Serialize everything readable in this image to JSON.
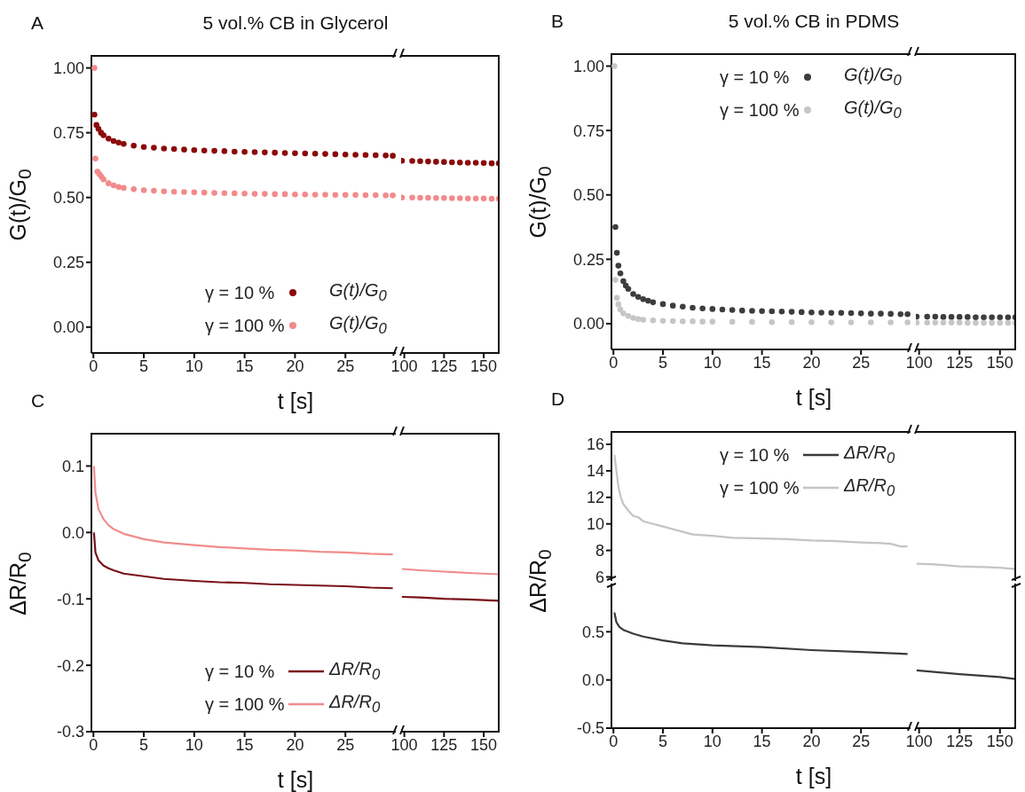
{
  "chart_data": [
    {
      "type": "scatter",
      "title": "5 vol.% CB in Glycerol",
      "xlabel": "t [s]",
      "ylabel": "G(t)/G$_{0}$",
      "annotations": [
        "A"
      ],
      "marker": "circle",
      "legend": "bottom right",
      "xlim": [
        -0.2,
        30
      ],
      "xticks": [
        0,
        5,
        10,
        15,
        20,
        25
      ],
      "ylim": [
        -0.1,
        1.05
      ],
      "yticks": [
        {
          "value": 0,
          "label": "0.00"
        },
        {
          "value": 0.25,
          "label": "0.25"
        },
        {
          "value": 0.5,
          "label": "0.50"
        },
        {
          "value": 0.75,
          "label": "0.75"
        },
        {
          "value": 1,
          "label": "1.00"
        }
      ],
      "series": [
        {
          "name": "γ = 10 %",
          "color": "#8b0a0a",
          "x": [
            0.1,
            0.3,
            0.5,
            0.75,
            1,
            1.5,
            2,
            2.5,
            3,
            4,
            5,
            6,
            7,
            8,
            9,
            10,
            11,
            12,
            13,
            14,
            15,
            16,
            17,
            18,
            19,
            20,
            21,
            22,
            23,
            24,
            25,
            26,
            27,
            28,
            29,
            29.7
          ],
          "values": [
            0.82,
            0.78,
            0.765,
            0.75,
            0.74,
            0.727,
            0.718,
            0.712,
            0.707,
            0.7,
            0.695,
            0.692,
            0.689,
            0.687,
            0.685,
            0.683,
            0.681,
            0.68,
            0.679,
            0.677,
            0.676,
            0.675,
            0.674,
            0.673,
            0.672,
            0.671,
            0.67,
            0.669,
            0.668,
            0.667,
            0.666,
            0.665,
            0.664,
            0.663,
            0.662,
            0.661
          ]
        },
        {
          "name": "γ = 100 %",
          "color": "#f28b8b",
          "x": [
            0.1,
            0.2,
            0.4,
            0.6,
            0.8,
            1,
            1.5,
            2,
            2.5,
            3,
            4,
            5,
            6,
            7,
            8,
            9,
            10,
            11,
            12,
            13,
            14,
            15,
            16,
            17,
            18,
            19,
            20,
            21,
            22,
            23,
            24,
            25,
            26,
            27,
            28,
            29,
            29.7
          ],
          "values": [
            1.0,
            0.65,
            0.6,
            0.59,
            0.58,
            0.57,
            0.555,
            0.547,
            0.541,
            0.537,
            0.532,
            0.528,
            0.526,
            0.524,
            0.522,
            0.521,
            0.52,
            0.519,
            0.518,
            0.517,
            0.516,
            0.515,
            0.514,
            0.514,
            0.513,
            0.513,
            0.512,
            0.512,
            0.511,
            0.511,
            0.51,
            0.51,
            0.51,
            0.509,
            0.509,
            0.508,
            0.508
          ]
        }
      ]
    },
    {
      "type": "scatter",
      "marker": "circle",
      "tick_labels": "x",
      "xlim": [
        98,
        160
      ],
      "xticks": [
        100,
        125,
        150
      ],
      "ylim": [
        -0.1,
        1.05
      ],
      "series": [
        {
          "color": "#8b0a0a",
          "x": [
            98.5,
            105,
            110,
            115,
            120,
            125,
            130,
            135,
            140,
            145,
            150,
            155,
            159.5
          ],
          "values": [
            0.642,
            0.641,
            0.64,
            0.639,
            0.638,
            0.637,
            0.636,
            0.635,
            0.634,
            0.634,
            0.633,
            0.632,
            0.632
          ]
        },
        {
          "color": "#f28b8b",
          "x": [
            98.5,
            105,
            110,
            115,
            120,
            125,
            130,
            135,
            140,
            145,
            150,
            155,
            159.5
          ],
          "values": [
            0.5,
            0.5,
            0.499,
            0.499,
            0.498,
            0.498,
            0.497,
            0.497,
            0.496,
            0.496,
            0.496,
            0.495,
            0.495
          ]
        }
      ]
    },
    {
      "type": "scatter",
      "title": "5 vol.% CB in PDMS",
      "xlabel": "t [s]",
      "ylabel": "G(t)/G$_{0}$",
      "annotations": [
        "B"
      ],
      "marker": "circle",
      "legend": "top right",
      "xlim": [
        -0.2,
        30
      ],
      "xticks": [
        0,
        5,
        10,
        15,
        20,
        25
      ],
      "ylim": [
        -0.1,
        1.05
      ],
      "yticks": [
        {
          "value": 0,
          "label": "0.00"
        },
        {
          "value": 0.25,
          "label": "0.25"
        },
        {
          "value": 0.5,
          "label": "0.50"
        },
        {
          "value": 0.75,
          "label": "0.75"
        },
        {
          "value": 1,
          "label": "1.00"
        }
      ],
      "series": [
        {
          "name": "γ = 10 %",
          "color": "#3d3d3d",
          "x": [
            0.2,
            0.35,
            0.5,
            0.7,
            1,
            1.25,
            1.5,
            2,
            2.5,
            3,
            3.5,
            4,
            5,
            6,
            7,
            8,
            9,
            10,
            11,
            12,
            13,
            14,
            15,
            16,
            17,
            18,
            19,
            20,
            21,
            22,
            23,
            24,
            25,
            26,
            27,
            28,
            29,
            29.7
          ],
          "values": [
            0.375,
            0.275,
            0.225,
            0.195,
            0.165,
            0.148,
            0.135,
            0.115,
            0.104,
            0.095,
            0.089,
            0.083,
            0.076,
            0.07,
            0.066,
            0.062,
            0.059,
            0.057,
            0.055,
            0.053,
            0.051,
            0.05,
            0.049,
            0.048,
            0.047,
            0.046,
            0.045,
            0.044,
            0.043,
            0.042,
            0.042,
            0.041,
            0.04,
            0.039,
            0.039,
            0.038,
            0.037,
            0.037
          ]
        },
        {
          "name": "γ = 100 %",
          "color": "#c6c6c6",
          "x": [
            0.1,
            0.2,
            0.35,
            0.5,
            0.7,
            1,
            1.5,
            2,
            2.5,
            3,
            4,
            5,
            6,
            7,
            8,
            9,
            10,
            12,
            14,
            16,
            18,
            20,
            22,
            24,
            26,
            28,
            29.7
          ],
          "values": [
            1.0,
            0.17,
            0.1,
            0.075,
            0.055,
            0.04,
            0.03,
            0.022,
            0.018,
            0.015,
            0.013,
            0.011,
            0.01,
            0.009,
            0.009,
            0.008,
            0.008,
            0.007,
            0.007,
            0.006,
            0.006,
            0.006,
            0.005,
            0.005,
            0.005,
            0.005,
            0.005
          ]
        }
      ]
    },
    {
      "type": "scatter",
      "marker": "circle",
      "tick_labels": "x",
      "xlim": [
        98,
        160
      ],
      "xticks": [
        100,
        125,
        150
      ],
      "ylim": [
        -0.1,
        1.05
      ],
      "series": [
        {
          "color": "#3d3d3d",
          "x": [
            98.5,
            105,
            110,
            115,
            120,
            125,
            130,
            135,
            140,
            145,
            150,
            155,
            159.5
          ],
          "values": [
            0.027,
            0.027,
            0.027,
            0.026,
            0.026,
            0.026,
            0.026,
            0.025,
            0.025,
            0.025,
            0.025,
            0.025,
            0.025
          ]
        },
        {
          "color": "#c6c6c6",
          "x": [
            98.5,
            105,
            110,
            115,
            120,
            125,
            130,
            135,
            140,
            145,
            150,
            155,
            159.5
          ],
          "values": [
            0.004,
            0.004,
            0.004,
            0.004,
            0.004,
            0.004,
            0.003,
            0.003,
            0.003,
            0.003,
            0.003,
            0.003,
            0.003
          ]
        }
      ]
    },
    {
      "type": "line",
      "xlabel": "t [s]",
      "ylabel": "ΔR/R$_{0}$",
      "annotations": [
        "C"
      ],
      "legend": "bottom right",
      "xlim": [
        -0.2,
        30
      ],
      "xticks": [
        0,
        5,
        10,
        15,
        20,
        25
      ],
      "ylim": [
        -0.3,
        0.15
      ],
      "yticks": [
        -0.3,
        -0.2,
        -0.1,
        {
          "value": 0,
          "label": "0.0"
        },
        0.1
      ],
      "series": [
        {
          "name": "γ = 10 %",
          "color": "#7a1018",
          "x": [
            0.05,
            0.2,
            0.5,
            1,
            1.5,
            2,
            3,
            4,
            5,
            7,
            10,
            12.5,
            15,
            17.5,
            20,
            22.5,
            25,
            27.5,
            29.7
          ],
          "values": [
            0.0,
            -0.03,
            -0.042,
            -0.05,
            -0.054,
            -0.057,
            -0.062,
            -0.064,
            -0.066,
            -0.07,
            -0.073,
            -0.075,
            -0.076,
            -0.078,
            -0.079,
            -0.08,
            -0.081,
            -0.083,
            -0.084
          ]
        },
        {
          "name": "γ = 100 %",
          "color": "#f08c8c",
          "x": [
            0.05,
            0.2,
            0.5,
            1,
            1.5,
            2,
            3,
            4,
            5,
            7,
            10,
            12.5,
            15,
            17.5,
            20,
            22.5,
            25,
            27.5,
            29.7
          ],
          "values": [
            0.1,
            0.06,
            0.035,
            0.02,
            0.011,
            0.005,
            -0.002,
            -0.006,
            -0.01,
            -0.015,
            -0.019,
            -0.022,
            -0.024,
            -0.026,
            -0.027,
            -0.029,
            -0.03,
            -0.032,
            -0.033
          ]
        }
      ]
    },
    {
      "type": "line",
      "tick_labels": "x",
      "xlim": [
        98,
        160
      ],
      "xticks": [
        100,
        125,
        150
      ],
      "ylim": [
        -0.3,
        0.15
      ],
      "series": [
        {
          "color": "#7a1018",
          "x": [
            98.5,
            110,
            125,
            140,
            150,
            159.5
          ],
          "values": [
            -0.097,
            -0.098,
            -0.1,
            -0.101,
            -0.102,
            -0.103
          ]
        },
        {
          "color": "#f08c8c",
          "x": [
            98.5,
            110,
            125,
            140,
            150,
            159.5
          ],
          "values": [
            -0.055,
            -0.057,
            -0.059,
            -0.061,
            -0.062,
            -0.063
          ]
        }
      ]
    },
    {
      "type": "line",
      "annotations": [
        "D"
      ],
      "legend": "top right",
      "tick_labels": "y",
      "xlim": [
        -0.2,
        30
      ],
      "ylim": [
        5.7,
        17
      ],
      "yticks": [
        6,
        8,
        10,
        12,
        14,
        16
      ],
      "series": [
        {
          "name": "γ = 100 %",
          "color": "#c4c4c4",
          "x": [
            0.1,
            0.3,
            0.5,
            0.75,
            1,
            1.5,
            2,
            2.5,
            3,
            4,
            5,
            6,
            7,
            8,
            10,
            12,
            15,
            17.5,
            20,
            22.5,
            25,
            27,
            28,
            29,
            29.7
          ],
          "values": [
            15.2,
            14.0,
            12.8,
            12.0,
            11.5,
            11.0,
            10.6,
            10.5,
            10.2,
            10.0,
            9.8,
            9.6,
            9.4,
            9.2,
            9.1,
            8.95,
            8.9,
            8.85,
            8.75,
            8.7,
            8.6,
            8.55,
            8.5,
            8.3,
            8.3
          ]
        }
      ]
    },
    {
      "type": "line",
      "tick_labels": false,
      "xlim": [
        98,
        160
      ],
      "ylim": [
        5.7,
        17
      ],
      "series": [
        {
          "color": "#c4c4c4",
          "x": [
            98.5,
            110,
            125,
            140,
            150,
            159.5
          ],
          "values": [
            7.0,
            6.95,
            6.8,
            6.75,
            6.7,
            6.6
          ]
        }
      ]
    },
    {
      "type": "line",
      "xlabel": "t [s]",
      "ylabel": "ΔR/R$_{0}$",
      "legend": "top right",
      "xlim": [
        -0.2,
        30
      ],
      "xticks": [
        0,
        5,
        10,
        15,
        20,
        25
      ],
      "ylim": [
        -0.5,
        1.0
      ],
      "yticks": [
        -0.5,
        {
          "value": 0,
          "label": "0.0"
        },
        0.5
      ],
      "series": [
        {
          "name": "γ = 10 %",
          "color": "#3a3a3a",
          "x": [
            0.1,
            0.3,
            0.6,
            1,
            2,
            3,
            5,
            7,
            10,
            15,
            20,
            25,
            29.7
          ],
          "values": [
            0.7,
            0.6,
            0.55,
            0.52,
            0.48,
            0.45,
            0.41,
            0.38,
            0.36,
            0.34,
            0.31,
            0.29,
            0.27
          ]
        }
      ]
    },
    {
      "type": "line",
      "tick_labels": "x",
      "xlim": [
        98,
        160
      ],
      "xticks": [
        100,
        125,
        150
      ],
      "ylim": [
        -0.5,
        1.0
      ],
      "series": [
        {
          "color": "#3a3a3a",
          "x": [
            98.5,
            125,
            150,
            159.5
          ],
          "values": [
            0.1,
            0.06,
            0.03,
            0.01
          ]
        }
      ]
    }
  ]
}
